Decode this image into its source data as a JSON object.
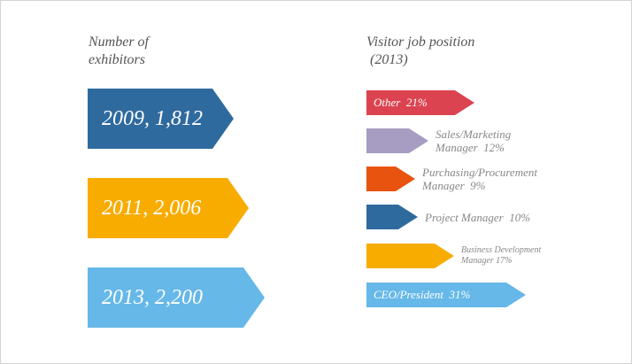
{
  "chart_data": [
    {
      "type": "bar",
      "title_lines": [
        "Number of",
        "exhibitors"
      ],
      "categories": [
        "2009",
        "2011",
        "2013"
      ],
      "values": [
        1812,
        2006,
        2200
      ],
      "labels": [
        "2009, 1,812",
        "2011, 2,006",
        "2013, 2,200"
      ],
      "colors": [
        "#2f6a9e",
        "#f8ac00",
        "#66b8e8"
      ]
    },
    {
      "type": "bar",
      "title_lines": [
        "Visitor job position",
        " (2013)"
      ],
      "categories": [
        "Other",
        "Sales/Marketing Manager",
        "Purchasing/Procurement Manager",
        "Project Manager",
        "Business Development Manager",
        "CEO/President"
      ],
      "values": [
        21,
        12,
        9,
        10,
        17,
        31
      ],
      "unit": "%",
      "label_lines": [
        [
          "Other  21%"
        ],
        [
          "Sales/Marketing",
          "Manager  12%"
        ],
        [
          "Purchasing/Procurement",
          "Manager  9%"
        ],
        [
          "Project Manager  10%"
        ],
        [
          "Business Development",
          "Manager 17%"
        ],
        [
          "CEO/President  31%"
        ]
      ],
      "colors": [
        "#dc4350",
        "#a79cc2",
        "#e8530f",
        "#2f6a9e",
        "#f8ac00",
        "#66b8e8"
      ]
    }
  ]
}
